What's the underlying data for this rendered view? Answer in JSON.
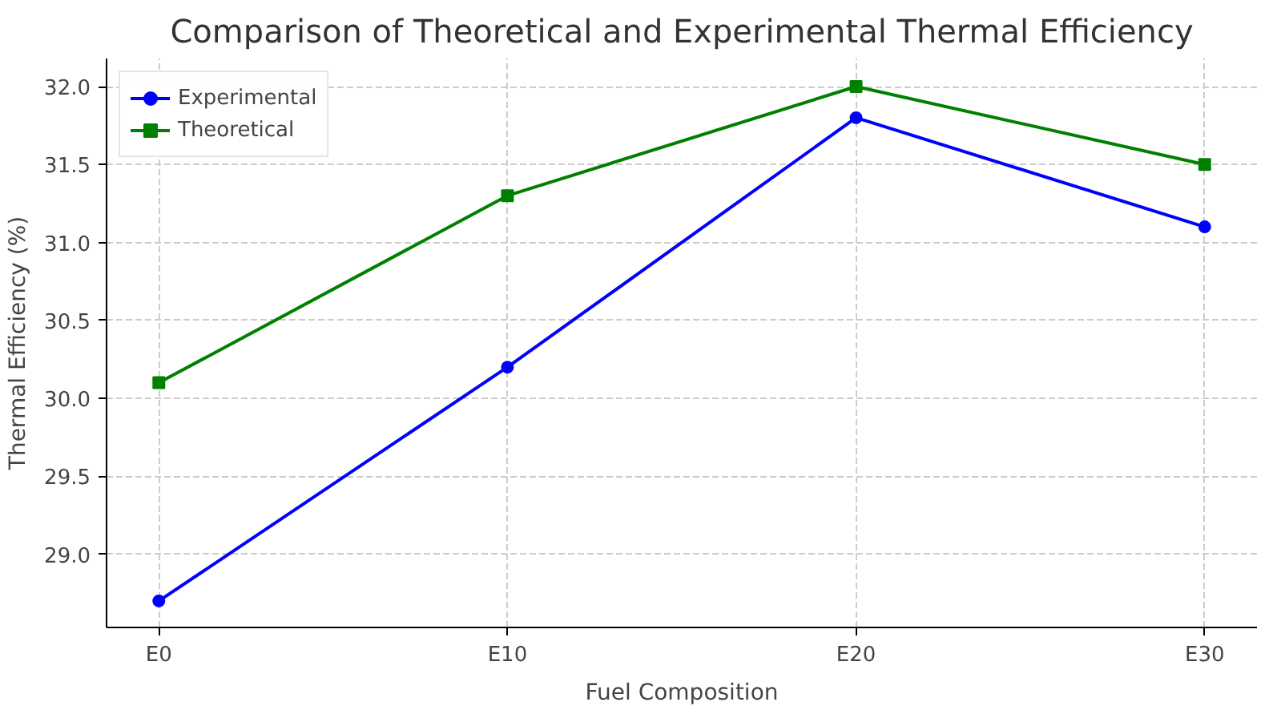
{
  "chart_data": {
    "type": "line",
    "title": "Comparison of Theoretical and Experimental Thermal Efficiency",
    "xlabel": "Fuel Composition",
    "ylabel": "Thermal Efficiency (%)",
    "categories": [
      "E0",
      "E10",
      "E20",
      "E30"
    ],
    "series": [
      {
        "name": "Experimental",
        "color": "#0000ff",
        "marker": "circle",
        "values": [
          28.7,
          30.2,
          31.8,
          31.1
        ]
      },
      {
        "name": "Theoretical",
        "color": "#008000",
        "marker": "square",
        "values": [
          30.1,
          31.3,
          32.0,
          31.5
        ]
      }
    ],
    "ylim": [
      28.53,
      32.18
    ],
    "yticks": [
      {
        "value": 29.0,
        "label": "29.0"
      },
      {
        "value": 29.5,
        "label": "29.5"
      },
      {
        "value": 30.0,
        "label": "30.0"
      },
      {
        "value": 30.5,
        "label": "30.5"
      },
      {
        "value": 31.0,
        "label": "31.0"
      },
      {
        "value": 31.5,
        "label": "31.5"
      },
      {
        "value": 32.0,
        "label": "32.0"
      }
    ],
    "grid": true,
    "legend": "top left",
    "line_style": "solid"
  }
}
